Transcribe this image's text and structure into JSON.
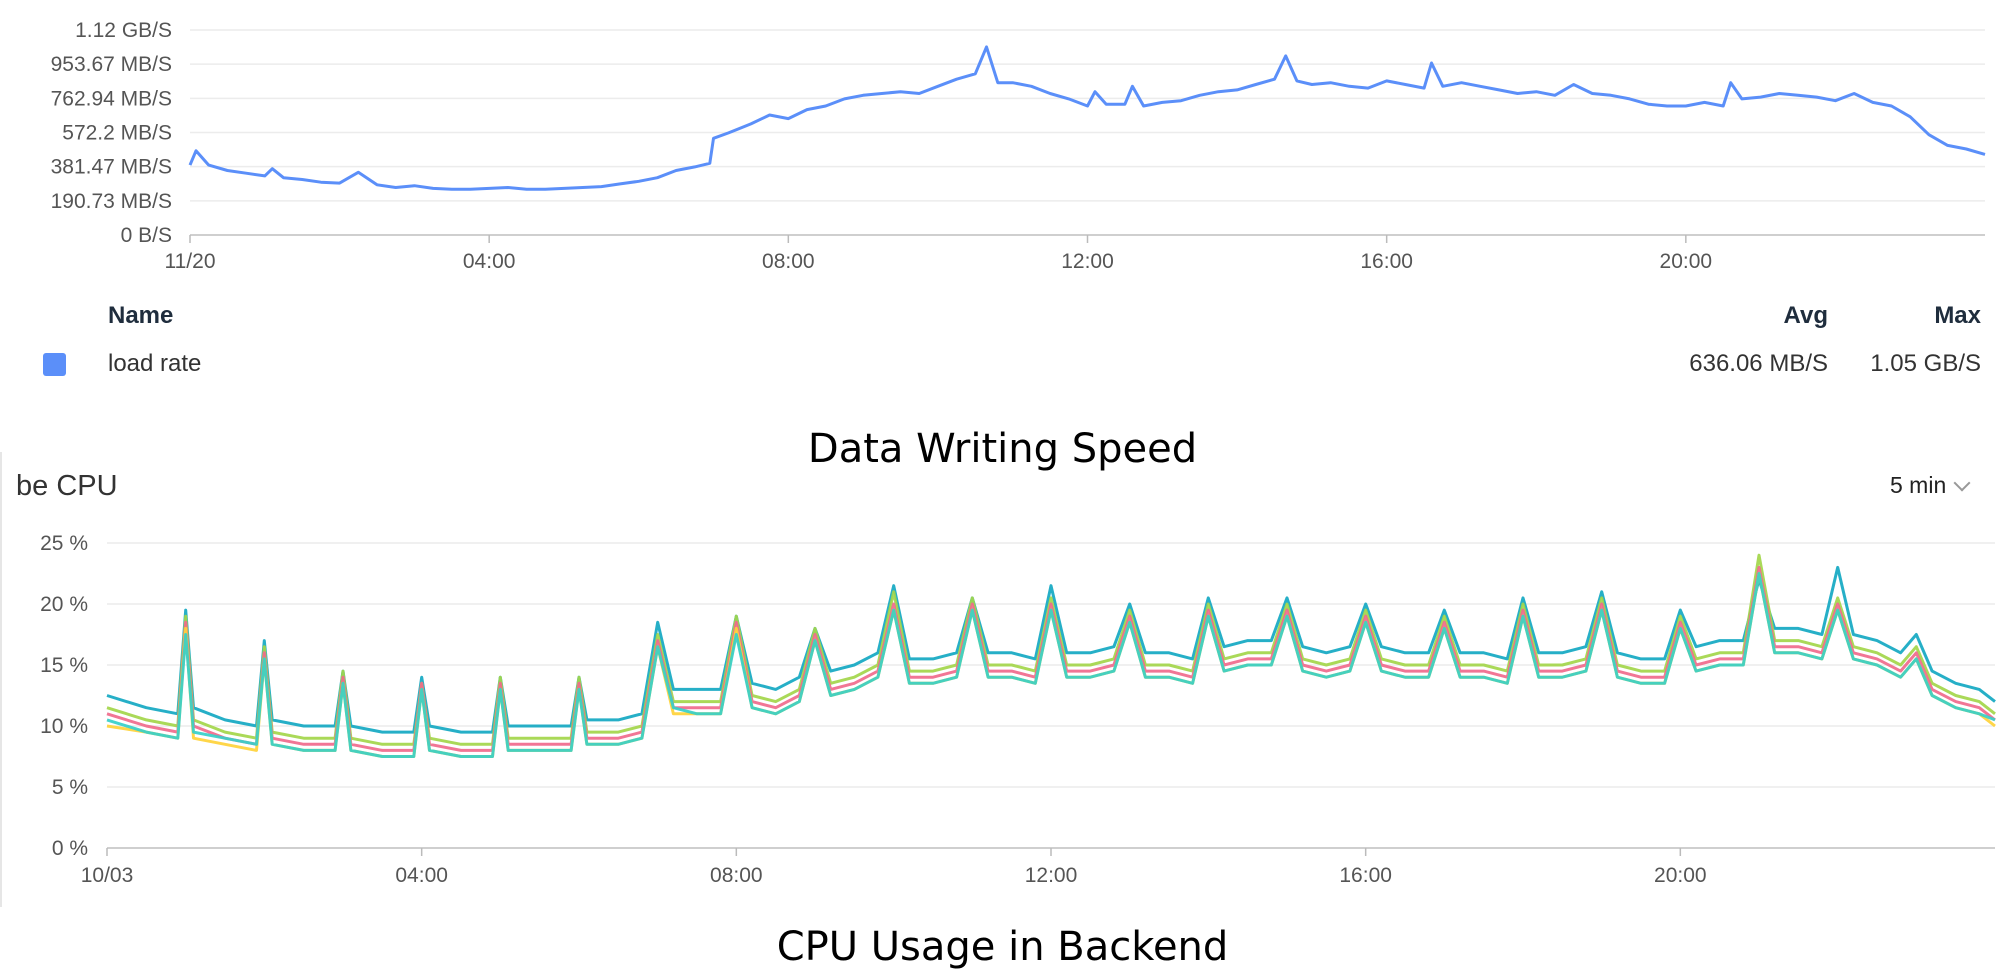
{
  "chart_data": [
    {
      "type": "line",
      "title": "",
      "caption": "Data Writing Speed",
      "y_tick_labels": [
        "0 B/S",
        "190.73 MB/S",
        "381.47 MB/S",
        "572.2 MB/S",
        "762.94 MB/S",
        "953.67 MB/S",
        "1.12 GB/S"
      ],
      "ylim_mb_per_s": [
        0,
        1144.4
      ],
      "x_tick_labels": [
        "11/20",
        "04:00",
        "08:00",
        "12:00",
        "16:00",
        "20:00"
      ],
      "xlim_hours": [
        0,
        24
      ],
      "grid": true,
      "legend": {
        "columns": [
          "Name",
          "Avg",
          "Max"
        ],
        "rows": [
          {
            "name": "load rate",
            "avg": "636.06 MB/S",
            "max": "1.05 GB/S",
            "color": "#5b8ff9"
          }
        ]
      },
      "series": [
        {
          "name": "load rate",
          "color": "#5b8ff9",
          "unit": "MB/S",
          "x": [
            0,
            0.08,
            0.25,
            0.5,
            0.75,
            1,
            1.1,
            1.25,
            1.5,
            1.75,
            2,
            2.25,
            2.5,
            2.75,
            3,
            3.25,
            3.5,
            3.75,
            4,
            4.25,
            4.5,
            4.75,
            5,
            5.25,
            5.5,
            5.75,
            6,
            6.25,
            6.5,
            6.75,
            6.95,
            7.0,
            7.2,
            7.5,
            7.75,
            8,
            8.25,
            8.5,
            8.75,
            9,
            9.25,
            9.5,
            9.75,
            10,
            10.25,
            10.5,
            10.65,
            10.8,
            11,
            11.25,
            11.5,
            11.75,
            12,
            12.1,
            12.25,
            12.5,
            12.6,
            12.75,
            13,
            13.25,
            13.5,
            13.75,
            14,
            14.25,
            14.5,
            14.65,
            14.8,
            15,
            15.25,
            15.5,
            15.75,
            16,
            16.25,
            16.5,
            16.6,
            16.75,
            17,
            17.25,
            17.5,
            17.75,
            18,
            18.25,
            18.5,
            18.75,
            19,
            19.25,
            19.5,
            19.75,
            20,
            20.25,
            20.5,
            20.6,
            20.75,
            21,
            21.25,
            21.5,
            21.75,
            22,
            22.25,
            22.5,
            22.75,
            23,
            23.25,
            23.5,
            23.75,
            24
          ],
          "values": [
            390,
            470,
            390,
            360,
            345,
            330,
            370,
            320,
            310,
            295,
            290,
            350,
            280,
            265,
            275,
            260,
            255,
            255,
            260,
            265,
            255,
            255,
            260,
            265,
            270,
            285,
            300,
            320,
            360,
            380,
            400,
            540,
            570,
            620,
            670,
            650,
            700,
            720,
            760,
            780,
            790,
            800,
            790,
            830,
            870,
            900,
            1050,
            850,
            850,
            830,
            790,
            760,
            720,
            800,
            730,
            730,
            830,
            720,
            740,
            750,
            780,
            800,
            810,
            840,
            870,
            1000,
            860,
            840,
            850,
            830,
            820,
            860,
            840,
            820,
            960,
            830,
            850,
            830,
            810,
            790,
            800,
            780,
            840,
            790,
            780,
            760,
            730,
            720,
            720,
            740,
            720,
            850,
            760,
            770,
            790,
            780,
            770,
            750,
            790,
            740,
            720,
            660,
            560,
            500,
            480,
            450
          ]
        }
      ]
    },
    {
      "type": "line",
      "title": "be CPU",
      "caption": "CPU Usage in Backend",
      "interval_selector": "5 min",
      "y_tick_labels": [
        "0 %",
        "5 %",
        "10 %",
        "15 %",
        "20 %",
        "25 %"
      ],
      "ylim": [
        0,
        25
      ],
      "x_tick_labels": [
        "10/03",
        "04:00",
        "08:00",
        "12:00",
        "16:00",
        "20:00"
      ],
      "xlim_hours": [
        0,
        24
      ],
      "grid": true,
      "x": [
        0,
        0.5,
        0.9,
        1.0,
        1.1,
        1.5,
        1.9,
        2.0,
        2.1,
        2.5,
        2.9,
        3.0,
        3.1,
        3.5,
        3.9,
        4.0,
        4.1,
        4.5,
        4.9,
        5.0,
        5.1,
        5.5,
        5.9,
        6.0,
        6.1,
        6.5,
        6.8,
        7.0,
        7.2,
        7.5,
        7.8,
        8.0,
        8.2,
        8.5,
        8.8,
        9.0,
        9.2,
        9.5,
        9.8,
        10.0,
        10.2,
        10.5,
        10.8,
        11.0,
        11.2,
        11.5,
        11.8,
        12.0,
        12.2,
        12.5,
        12.8,
        13.0,
        13.2,
        13.5,
        13.8,
        14.0,
        14.2,
        14.5,
        14.8,
        15.0,
        15.2,
        15.5,
        15.8,
        16.0,
        16.2,
        16.5,
        16.8,
        17.0,
        17.2,
        17.5,
        17.8,
        18.0,
        18.2,
        18.5,
        18.8,
        19.0,
        19.2,
        19.5,
        19.8,
        20.0,
        20.2,
        20.5,
        20.8,
        21.0,
        21.2,
        21.5,
        21.8,
        22.0,
        22.2,
        22.5,
        22.8,
        23.0,
        23.2,
        23.5,
        23.8,
        24.0
      ],
      "series": [
        {
          "color": "#13a8c2",
          "values": [
            12.5,
            11.5,
            11,
            19.5,
            11.5,
            10.5,
            10,
            17,
            10.5,
            10,
            10,
            14.5,
            10,
            9.5,
            9.5,
            14,
            10,
            9.5,
            9.5,
            14,
            10,
            10,
            10,
            14,
            10.5,
            10.5,
            11,
            18.5,
            13,
            13,
            13,
            19,
            13.5,
            13,
            14,
            18,
            14.5,
            15,
            16,
            21.5,
            15.5,
            15.5,
            16,
            20.5,
            16,
            16,
            15.5,
            21.5,
            16,
            16,
            16.5,
            20,
            16,
            16,
            15.5,
            20.5,
            16.5,
            17,
            17,
            20.5,
            16.5,
            16,
            16.5,
            20,
            16.5,
            16,
            16,
            19.5,
            16,
            16,
            15.5,
            20.5,
            16,
            16,
            16.5,
            21,
            16,
            15.5,
            15.5,
            19.5,
            16.5,
            17,
            17,
            22,
            18,
            18,
            17.5,
            23,
            17.5,
            17,
            16,
            17.5,
            14.5,
            13.5,
            13,
            12
          ]
        },
        {
          "color": "#a3d64a",
          "values": [
            11.5,
            10.5,
            10,
            19,
            10.5,
            9.5,
            9,
            16.5,
            9.5,
            9,
            9,
            14.5,
            9,
            8.5,
            8.5,
            13.5,
            9,
            8.5,
            8.5,
            14,
            9,
            9,
            9,
            14,
            9.5,
            9.5,
            10,
            17.5,
            12,
            12,
            12,
            19,
            12.5,
            12,
            13,
            18,
            13.5,
            14,
            15,
            21,
            14.5,
            14.5,
            15,
            20.5,
            15,
            15,
            14.5,
            20.5,
            15,
            15,
            15.5,
            19.5,
            15,
            15,
            14.5,
            20,
            15.5,
            16,
            16,
            20,
            15.5,
            15,
            15.5,
            19.5,
            15.5,
            15,
            15,
            19,
            15,
            15,
            14.5,
            20,
            15,
            15,
            15.5,
            20.5,
            15,
            14.5,
            14.5,
            19,
            15.5,
            16,
            16,
            24,
            17,
            17,
            16.5,
            20.5,
            16.5,
            16,
            15,
            16.5,
            13.5,
            12.5,
            12,
            11
          ]
        },
        {
          "color": "#f06a8c",
          "values": [
            11,
            10,
            9.5,
            18.5,
            10,
            9,
            8.5,
            16,
            9,
            8.5,
            8.5,
            14,
            8.5,
            8,
            8,
            13.5,
            8.5,
            8,
            8,
            13.5,
            8.5,
            8.5,
            8.5,
            13.5,
            9,
            9,
            9.5,
            17,
            11.5,
            11.5,
            11.5,
            18.5,
            12,
            11.5,
            12.5,
            17.5,
            13,
            13.5,
            14.5,
            20,
            14,
            14,
            14.5,
            20,
            14.5,
            14.5,
            14,
            20,
            14.5,
            14.5,
            15,
            19,
            14.5,
            14.5,
            14,
            19.5,
            15,
            15.5,
            15.5,
            19.5,
            15,
            14.5,
            15,
            19,
            15,
            14.5,
            14.5,
            18.5,
            14.5,
            14.5,
            14,
            19.5,
            14.5,
            14.5,
            15,
            20,
            14.5,
            14,
            14,
            18.5,
            15,
            15.5,
            15.5,
            23,
            16.5,
            16.5,
            16,
            20,
            16,
            15.5,
            14.5,
            16,
            13,
            12,
            11.5,
            10.5
          ]
        },
        {
          "color": "#ffd23a",
          "values": [
            10,
            9.5,
            9,
            18,
            9,
            8.5,
            8,
            15.5,
            8.5,
            8,
            8,
            13.5,
            8,
            7.5,
            7.5,
            13,
            8,
            7.5,
            7.5,
            13,
            8,
            8,
            8,
            13,
            8.5,
            8.5,
            9,
            16.5,
            11,
            11,
            11,
            18,
            11.5,
            11,
            12,
            17,
            12.5,
            13,
            14,
            19.5,
            13.5,
            13.5,
            14,
            19.5,
            14,
            14,
            13.5,
            19.5,
            14,
            14,
            14.5,
            18.5,
            14,
            14,
            13.5,
            19,
            14.5,
            15,
            15,
            19,
            14.5,
            14,
            14.5,
            18.5,
            14.5,
            14,
            14,
            18,
            14,
            14,
            13.5,
            19,
            14,
            14,
            14.5,
            19.5,
            14,
            13.5,
            13.5,
            18,
            14.5,
            15,
            15,
            22.5,
            16,
            16,
            15.5,
            19.5,
            15.5,
            15,
            14,
            15.5,
            12.5,
            11.5,
            11,
            10
          ]
        },
        {
          "color": "#36cfc9",
          "values": [
            10.5,
            9.5,
            9,
            17.5,
            9.5,
            9,
            8.5,
            15.5,
            8.5,
            8,
            8,
            13.5,
            8,
            7.5,
            7.5,
            13,
            8,
            7.5,
            7.5,
            13,
            8,
            8,
            8,
            13,
            8.5,
            8.5,
            9,
            16.5,
            11.5,
            11,
            11,
            17.5,
            11.5,
            11,
            12,
            17,
            12.5,
            13,
            14,
            19.5,
            13.5,
            13.5,
            14,
            19.5,
            14,
            14,
            13.5,
            19.5,
            14,
            14,
            14.5,
            18.5,
            14,
            14,
            13.5,
            19,
            14.5,
            15,
            15,
            19,
            14.5,
            14,
            14.5,
            18.5,
            14.5,
            14,
            14,
            18,
            14,
            14,
            13.5,
            19,
            14,
            14,
            14.5,
            19.5,
            14,
            13.5,
            13.5,
            18,
            14.5,
            15,
            15,
            22.5,
            16,
            16,
            15.5,
            19.5,
            15.5,
            15,
            14,
            15.5,
            12.5,
            11.5,
            11,
            10.5
          ]
        }
      ]
    }
  ]
}
